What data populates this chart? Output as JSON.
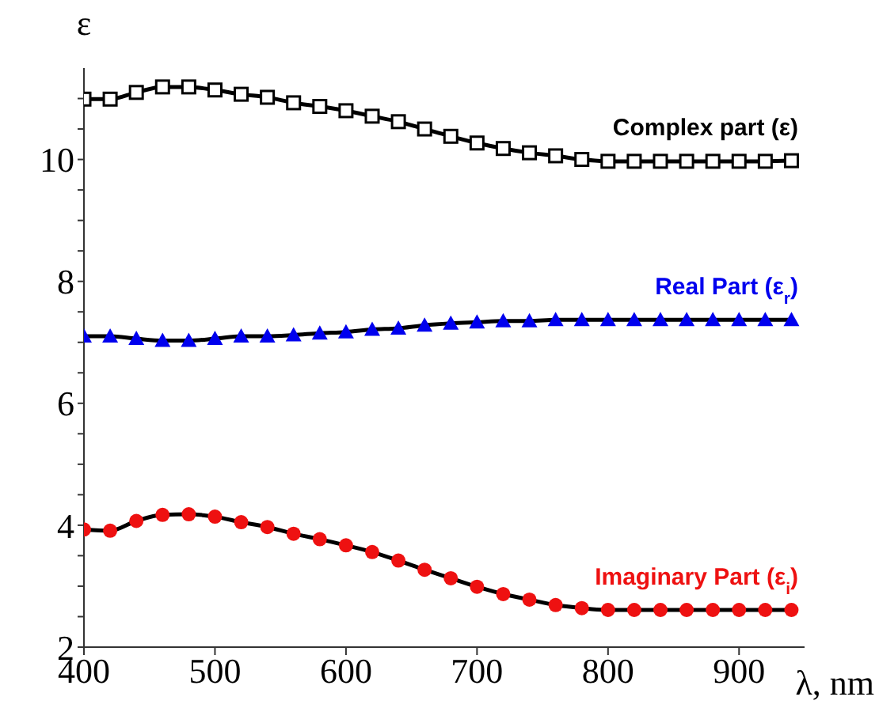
{
  "chart_data": {
    "type": "line",
    "xlabel": "λ, nm",
    "ylabel": "ε",
    "x": [
      400,
      420,
      440,
      460,
      480,
      500,
      520,
      540,
      560,
      580,
      600,
      620,
      640,
      660,
      680,
      700,
      720,
      740,
      760,
      780,
      800,
      820,
      840,
      860,
      880,
      900,
      920,
      940
    ],
    "series": [
      {
        "name": "Complex part (ε)",
        "color": "#000000",
        "marker": "square",
        "values": [
          10.99,
          10.99,
          11.1,
          11.19,
          11.19,
          11.14,
          11.07,
          11.02,
          10.93,
          10.87,
          10.8,
          10.71,
          10.62,
          10.5,
          10.38,
          10.27,
          10.18,
          10.11,
          10.06,
          10.0,
          9.97,
          9.97,
          9.97,
          9.97,
          9.97,
          9.97,
          9.97,
          9.98
        ]
      },
      {
        "name": "Real Part (ε$_{r}$)",
        "color": "#0000ee",
        "marker": "triangle",
        "values": [
          7.1,
          7.1,
          7.06,
          7.03,
          7.03,
          7.06,
          7.1,
          7.1,
          7.12,
          7.15,
          7.17,
          7.21,
          7.23,
          7.28,
          7.31,
          7.33,
          7.35,
          7.35,
          7.37,
          7.37,
          7.37,
          7.37,
          7.37,
          7.37,
          7.37,
          7.37,
          7.37,
          7.37
        ]
      },
      {
        "name": "Imaginary Part (ε$_{i}$)",
        "color": "#ee1111",
        "marker": "circle",
        "values": [
          3.93,
          3.91,
          4.07,
          4.17,
          4.18,
          4.14,
          4.05,
          3.97,
          3.86,
          3.77,
          3.67,
          3.56,
          3.42,
          3.27,
          3.13,
          2.99,
          2.87,
          2.78,
          2.69,
          2.64,
          2.61,
          2.61,
          2.61,
          2.61,
          2.61,
          2.61,
          2.61,
          2.61
        ]
      }
    ],
    "xlim": [
      400,
      950
    ],
    "xticks": [
      400,
      500,
      600,
      700,
      800,
      900
    ],
    "ylim": [
      2,
      11.5
    ],
    "yticks": [
      2,
      {
        "value": 2.5,
        "label": null
      },
      {
        "value": 3,
        "label": null
      },
      {
        "value": 3.5,
        "label": null
      },
      4,
      {
        "value": 4.5,
        "label": null
      },
      {
        "value": 5,
        "label": null
      },
      {
        "value": 5.5,
        "label": null
      },
      6,
      {
        "value": 6.5,
        "label": null
      },
      {
        "value": 7,
        "label": null
      },
      {
        "value": 7.5,
        "label": null
      },
      8,
      {
        "value": 8.5,
        "label": null
      },
      {
        "value": 9,
        "label": null
      },
      {
        "value": 9.5,
        "label": null
      },
      10,
      {
        "value": 10.5,
        "label": null
      },
      {
        "value": 11,
        "label": null
      }
    ],
    "grid": false,
    "legend": false,
    "line_style": "solid"
  }
}
